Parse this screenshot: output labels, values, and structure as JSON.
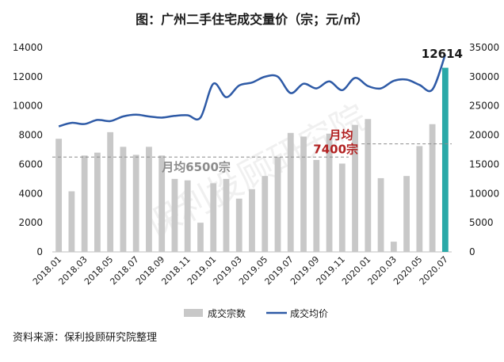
{
  "chart_data": {
    "type": "bar+line",
    "title": "图：广州二手住宅成交量价（宗；元/㎡）",
    "categories": [
      "2018.01",
      "2018.02",
      "2018.03",
      "2018.04",
      "2018.05",
      "2018.06",
      "2018.07",
      "2018.08",
      "2018.09",
      "2018.10",
      "2018.11",
      "2018.12",
      "2019.01",
      "2019.02",
      "2019.03",
      "2019.04",
      "2019.05",
      "2019.06",
      "2019.07",
      "2019.08",
      "2019.09",
      "2019.10",
      "2019.11",
      "2019.12",
      "2020.01",
      "2020.02",
      "2020.03",
      "2020.04",
      "2020.05",
      "2020.06",
      "2020.07"
    ],
    "x_tick_labels": [
      "2018.01",
      "2018.03",
      "2018.05",
      "2018.07",
      "2018.09",
      "2018.11",
      "2019.01",
      "2019.03",
      "2019.05",
      "2019.07",
      "2019.09",
      "2019.11",
      "2020.01",
      "2020.03",
      "2020.05",
      "2020.07"
    ],
    "series": [
      {
        "name": "成交宗数",
        "kind": "bar",
        "axis": "left",
        "color": "#c8c8c8",
        "highlight_last_color": "#2aa9a8",
        "values": [
          7750,
          4150,
          6600,
          6800,
          8200,
          7200,
          6650,
          7200,
          6600,
          5000,
          4900,
          2000,
          4700,
          5000,
          3650,
          4300,
          5200,
          6500,
          8150,
          7900,
          6300,
          8100,
          6050,
          8700,
          9100,
          5050,
          700,
          5200,
          7250,
          8750,
          12614
        ]
      },
      {
        "name": "成交均价",
        "kind": "line",
        "axis": "right",
        "color": "#2e5aa6",
        "values": [
          21500,
          22100,
          21900,
          22600,
          22400,
          23200,
          23500,
          23200,
          23000,
          23300,
          23400,
          23000,
          28800,
          26500,
          28500,
          29000,
          30000,
          30000,
          27200,
          28800,
          28000,
          29200,
          27700,
          29800,
          28400,
          28000,
          29300,
          29500,
          28600,
          27800,
          33800
        ]
      }
    ],
    "left_axis": {
      "min": 0,
      "max": 14000,
      "ticks": [
        "0",
        "2000",
        "4000",
        "6000",
        "8000",
        "10000",
        "12000",
        "14000"
      ]
    },
    "right_axis": {
      "min": 0,
      "max": 35000,
      "ticks": [
        "0",
        "5000",
        "10000",
        "15000",
        "20000",
        "25000",
        "30000",
        "35000"
      ]
    },
    "reference_lines": [
      {
        "label": "月均6500宗",
        "value": 6500,
        "from_index": 0,
        "to_index": 23
      },
      {
        "label_line1": "月均",
        "label_line2": "7400宗",
        "value": 7400,
        "from_index": 23,
        "to_index": 30
      }
    ],
    "annotation_last": "12614",
    "legend": {
      "position": "bottom",
      "items": [
        "成交宗数",
        "成交均价"
      ]
    },
    "watermark": "保利投顾研究院",
    "source_note": "资料来源：保利投顾研究院整理",
    "grid": false
  }
}
